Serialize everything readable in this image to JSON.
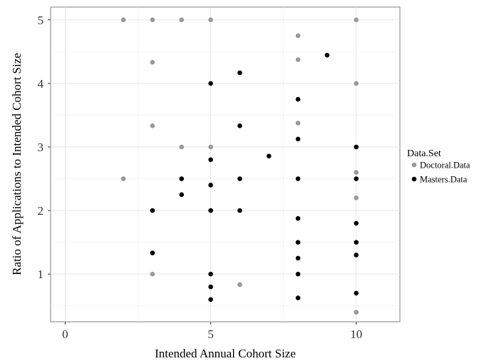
{
  "chart_data": {
    "type": "scatter",
    "title": "",
    "xlabel": "Intended Annual Cohort Size",
    "ylabel": "Ratio of Applications to Intended Cohort Size",
    "xlim": [
      -0.5,
      11.5
    ],
    "ylim": [
      0.25,
      5.2
    ],
    "x_ticks": [
      0,
      5,
      10
    ],
    "y_ticks": [
      1,
      2,
      3,
      4,
      5
    ],
    "grid": true,
    "legend": {
      "title": "Data.Set",
      "placement": "right"
    },
    "series": [
      {
        "name": "Doctoral.Data",
        "color": "#999999",
        "points": [
          [
            2,
            5
          ],
          [
            3,
            5
          ],
          [
            4,
            5
          ],
          [
            5,
            5
          ],
          [
            8,
            4.75
          ],
          [
            8,
            4.375
          ],
          [
            3,
            4.333
          ],
          [
            10,
            5
          ],
          [
            10,
            4
          ],
          [
            8,
            3.375
          ],
          [
            3,
            3.333
          ],
          [
            4,
            3
          ],
          [
            5,
            3
          ],
          [
            2,
            2.5
          ],
          [
            10,
            2.6
          ],
          [
            10,
            2.2
          ],
          [
            3,
            1
          ],
          [
            6,
            0.833
          ],
          [
            10,
            0.4
          ]
        ]
      },
      {
        "name": "Masters.Data",
        "color": "#000000",
        "points": [
          [
            9,
            4.444
          ],
          [
            6,
            4.167
          ],
          [
            5,
            4
          ],
          [
            8,
            3.75
          ],
          [
            6,
            3.333
          ],
          [
            8,
            3.125
          ],
          [
            10,
            3
          ],
          [
            7,
            2.857
          ],
          [
            5,
            2.8
          ],
          [
            4,
            2.5
          ],
          [
            6,
            2.5
          ],
          [
            8,
            2.5
          ],
          [
            10,
            2.5
          ],
          [
            5,
            2.4
          ],
          [
            4,
            2.25
          ],
          [
            3,
            2
          ],
          [
            5,
            2
          ],
          [
            6,
            2
          ],
          [
            8,
            1.875
          ],
          [
            10,
            1.8
          ],
          [
            8,
            1.5
          ],
          [
            10,
            1.5
          ],
          [
            3,
            1.333
          ],
          [
            10,
            1.3
          ],
          [
            8,
            1.25
          ],
          [
            5,
            1
          ],
          [
            8,
            1
          ],
          [
            5,
            0.8
          ],
          [
            10,
            0.7
          ],
          [
            8,
            0.625
          ],
          [
            5,
            0.6
          ]
        ]
      }
    ]
  }
}
